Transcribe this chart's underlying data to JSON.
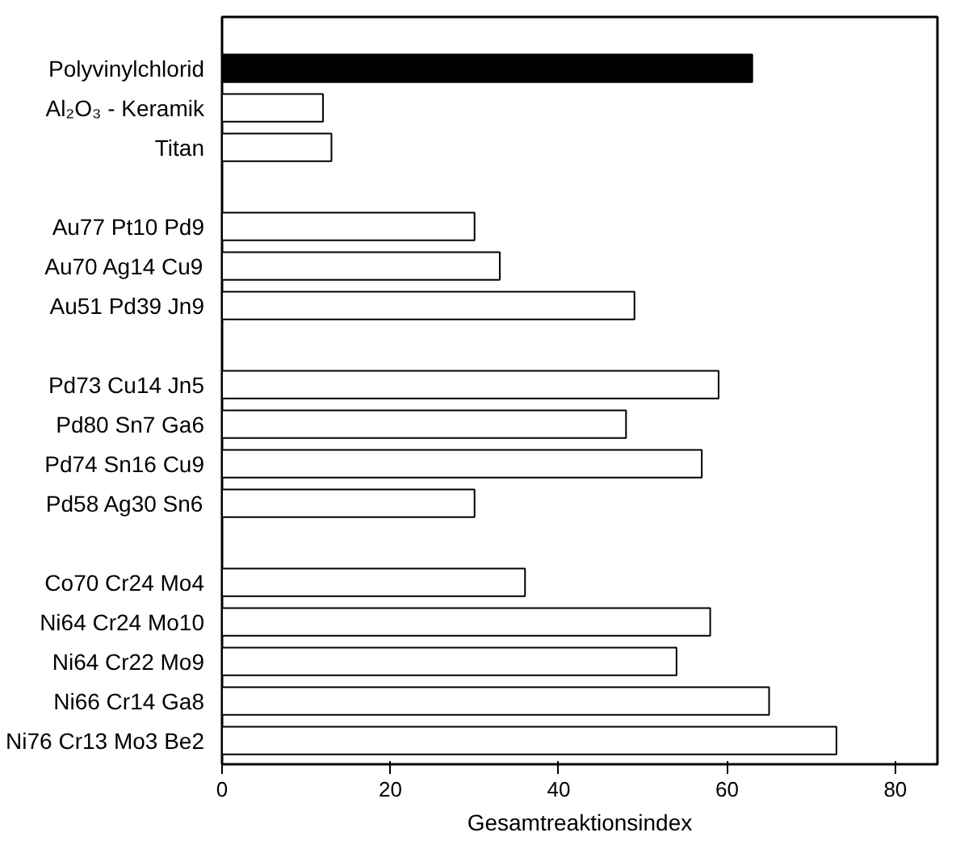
{
  "chart_data": {
    "type": "bar",
    "orientation": "horizontal",
    "xlabel": "Gesamtreaktionsindex",
    "categories": [
      "Polyvinylchlorid",
      "Al₂O₃ - Keramik",
      "Titan",
      null,
      "Au77 Pt10 Pd9",
      "Au70 Ag14 Cu9",
      "Au51 Pd39 Jn9",
      null,
      "Pd73 Cu14 Jn5",
      "Pd80 Sn7 Ga6",
      "Pd74 Sn16 Cu9",
      "Pd58 Ag30 Sn6",
      null,
      "Co70 Cr24 Mo4",
      "Ni64 Cr24 Mo10",
      "Ni64 Cr22 Mo9",
      "Ni66 Cr14 Ga8",
      "Ni76 Cr13 Mo3 Be2"
    ],
    "values": [
      63,
      12,
      13,
      null,
      30,
      33,
      49,
      null,
      59,
      48,
      57,
      30,
      null,
      36,
      58,
      54,
      65,
      73
    ],
    "colors": [
      "#000000",
      "#ffffff",
      "#ffffff",
      null,
      "#ffffff",
      "#ffffff",
      "#ffffff",
      null,
      "#ffffff",
      "#ffffff",
      "#ffffff",
      "#ffffff",
      null,
      "#ffffff",
      "#ffffff",
      "#ffffff",
      "#ffffff",
      "#ffffff"
    ],
    "xlim": [
      0,
      85
    ],
    "xticks": [
      0,
      20,
      40,
      60,
      80
    ]
  }
}
